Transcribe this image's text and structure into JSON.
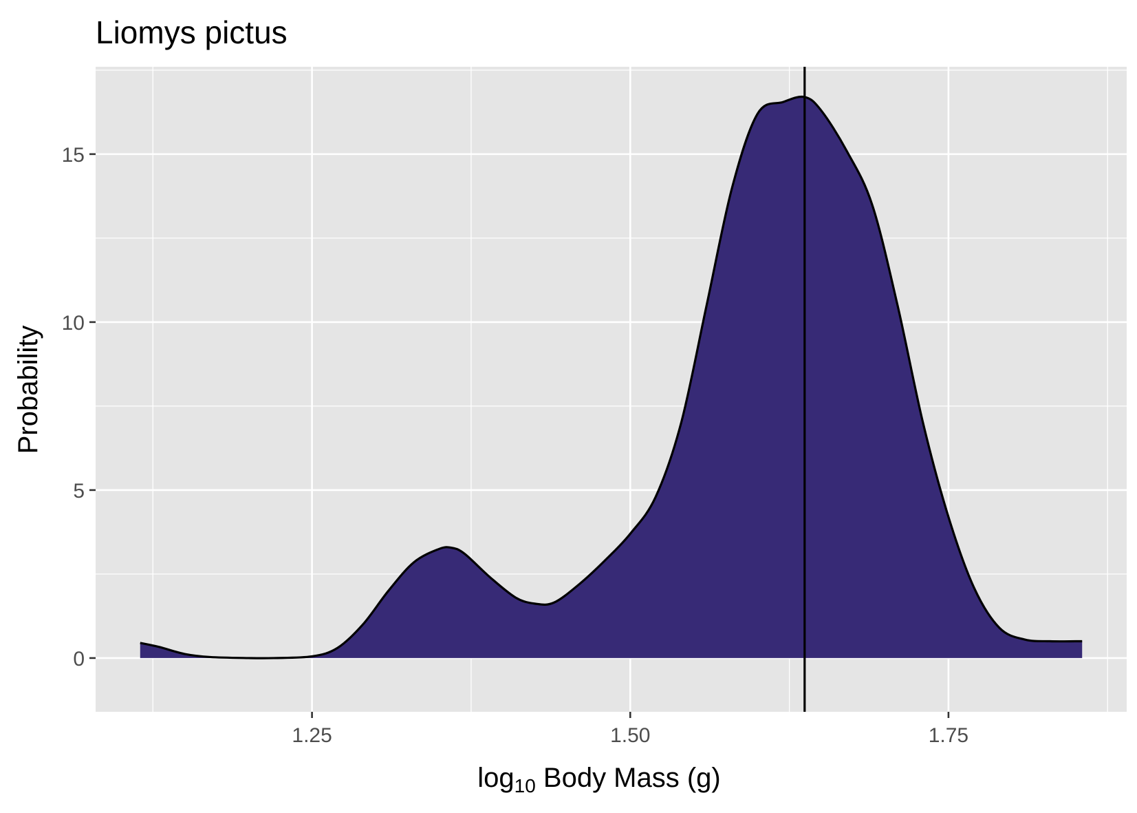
{
  "chart_data": {
    "type": "area",
    "title": "Liomys pictus",
    "xlabel": "log10 Body Mass (g)",
    "xlabel_parts": {
      "base": "log",
      "sub": "10",
      "rest": " Body Mass (g)"
    },
    "ylabel": "Probability",
    "xlim": [
      1.08,
      1.89
    ],
    "ylim": [
      -1.6,
      17.6
    ],
    "x_ticks": [
      1.25,
      1.5,
      1.75
    ],
    "x_tick_labels": [
      "1.25",
      "1.50",
      "1.75"
    ],
    "y_ticks": [
      0,
      5,
      10,
      15
    ],
    "y_tick_labels": [
      "0",
      "5",
      "10",
      "15"
    ],
    "grid": true,
    "fill_color": "#372A76",
    "line_color": "#000000",
    "panel_color": "#E5E5E5",
    "vline_x": 1.637,
    "x": [
      1.115,
      1.13,
      1.15,
      1.17,
      1.2,
      1.22,
      1.25,
      1.27,
      1.29,
      1.31,
      1.33,
      1.35,
      1.36,
      1.37,
      1.39,
      1.41,
      1.425,
      1.44,
      1.46,
      1.48,
      1.5,
      1.52,
      1.54,
      1.56,
      1.58,
      1.6,
      1.62,
      1.637,
      1.65,
      1.67,
      1.69,
      1.71,
      1.73,
      1.75,
      1.77,
      1.79,
      1.81,
      1.83,
      1.85,
      1.855
    ],
    "y": [
      0.45,
      0.33,
      0.12,
      0.03,
      0.0,
      0.0,
      0.05,
      0.3,
      1.0,
      2.0,
      2.85,
      3.25,
      3.28,
      3.1,
      2.4,
      1.8,
      1.62,
      1.65,
      2.2,
      2.9,
      3.7,
      4.8,
      7.0,
      10.5,
      14.0,
      16.2,
      16.55,
      16.7,
      16.3,
      15.1,
      13.5,
      10.5,
      7.0,
      4.2,
      2.1,
      0.9,
      0.55,
      0.5,
      0.5,
      0.5
    ]
  }
}
